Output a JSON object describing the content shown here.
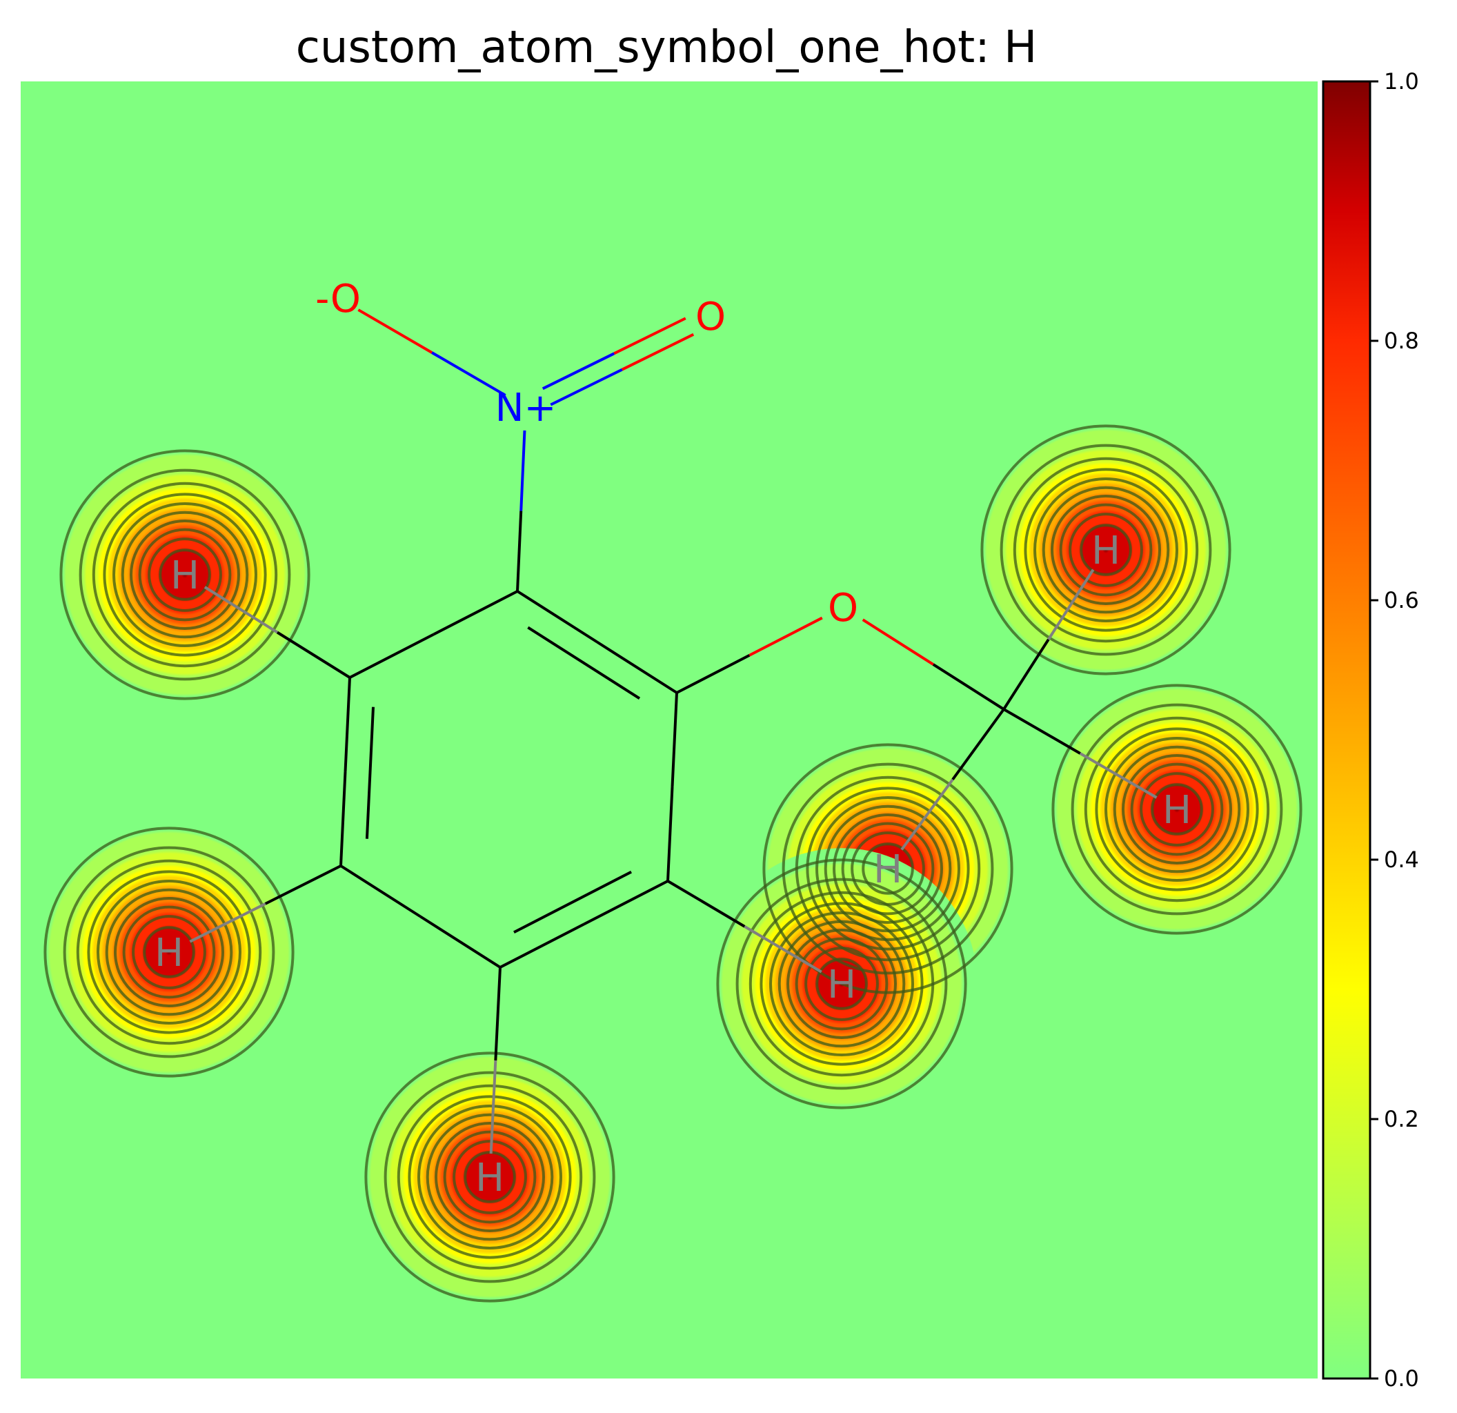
{
  "title": "custom_atom_symbol_one_hot: H",
  "chart_data": {
    "type": "heatmap",
    "title": "custom_atom_symbol_one_hot: H",
    "colormap": "jet-like (background #80ff80 at 0.0, yellow #ffff00 near 0.3, red #ff0000 near 0.8, dark red #800000 at 1.0)",
    "colorbar": {
      "range": [
        0.0,
        1.0
      ],
      "ticks": [
        "0.0",
        "0.2",
        "0.4",
        "0.6",
        "0.8",
        "1.0"
      ],
      "placement": "right"
    },
    "contour_levels": 10,
    "atoms": [
      {
        "id": "c1",
        "symbol": "",
        "element": "C"
      },
      {
        "id": "c2",
        "symbol": "",
        "element": "C"
      },
      {
        "id": "c3",
        "symbol": "",
        "element": "C"
      },
      {
        "id": "c4",
        "symbol": "",
        "element": "C"
      },
      {
        "id": "c5",
        "symbol": "",
        "element": "C"
      },
      {
        "id": "c6",
        "symbol": "",
        "element": "C"
      },
      {
        "id": "n1",
        "symbol": "N+",
        "element": "N",
        "color": "#0000ff"
      },
      {
        "id": "o1",
        "symbol": "-O",
        "element": "O",
        "color": "#ff0000"
      },
      {
        "id": "o2",
        "symbol": "O",
        "element": "O",
        "color": "#ff0000"
      },
      {
        "id": "o3",
        "symbol": "O",
        "element": "O",
        "color": "#ff0000"
      },
      {
        "id": "c7",
        "symbol": "",
        "element": "C"
      },
      {
        "id": "h1",
        "symbol": "H",
        "element": "H",
        "color": "#808080",
        "value": 1.0
      },
      {
        "id": "h2",
        "symbol": "H",
        "element": "H",
        "color": "#808080",
        "value": 1.0
      },
      {
        "id": "h3",
        "symbol": "H",
        "element": "H",
        "color": "#808080",
        "value": 1.0
      },
      {
        "id": "h4",
        "symbol": "H",
        "element": "H",
        "color": "#808080",
        "value": 1.0
      },
      {
        "id": "h5",
        "symbol": "H",
        "element": "H",
        "color": "#808080",
        "value": 1.0
      },
      {
        "id": "h6",
        "symbol": "H",
        "element": "H",
        "color": "#808080",
        "value": 1.0
      },
      {
        "id": "h7",
        "symbol": "H",
        "element": "H",
        "color": "#808080",
        "value": 1.0
      }
    ],
    "bonds": [
      {
        "a": "c1",
        "b": "c2",
        "order": 2
      },
      {
        "a": "c2",
        "b": "c3",
        "order": 1
      },
      {
        "a": "c3",
        "b": "c4",
        "order": 2
      },
      {
        "a": "c4",
        "b": "c5",
        "order": 1
      },
      {
        "a": "c5",
        "b": "c6",
        "order": 2
      },
      {
        "a": "c6",
        "b": "c1",
        "order": 1
      },
      {
        "a": "c1",
        "b": "n1",
        "order": 1
      },
      {
        "a": "n1",
        "b": "o1",
        "order": 1
      },
      {
        "a": "n1",
        "b": "o2",
        "order": 2
      },
      {
        "a": "c2",
        "b": "o3",
        "order": 1
      },
      {
        "a": "o3",
        "b": "c7",
        "order": 1
      },
      {
        "a": "c7",
        "b": "h1",
        "order": 1
      },
      {
        "a": "c7",
        "b": "h2",
        "order": 1
      },
      {
        "a": "c7",
        "b": "h3",
        "order": 1
      },
      {
        "a": "c3",
        "b": "h4",
        "order": 1
      },
      {
        "a": "c4",
        "b": "h5",
        "order": 1
      },
      {
        "a": "c5",
        "b": "h6",
        "order": 1
      },
      {
        "a": "c6",
        "b": "h7",
        "order": 1
      }
    ]
  }
}
